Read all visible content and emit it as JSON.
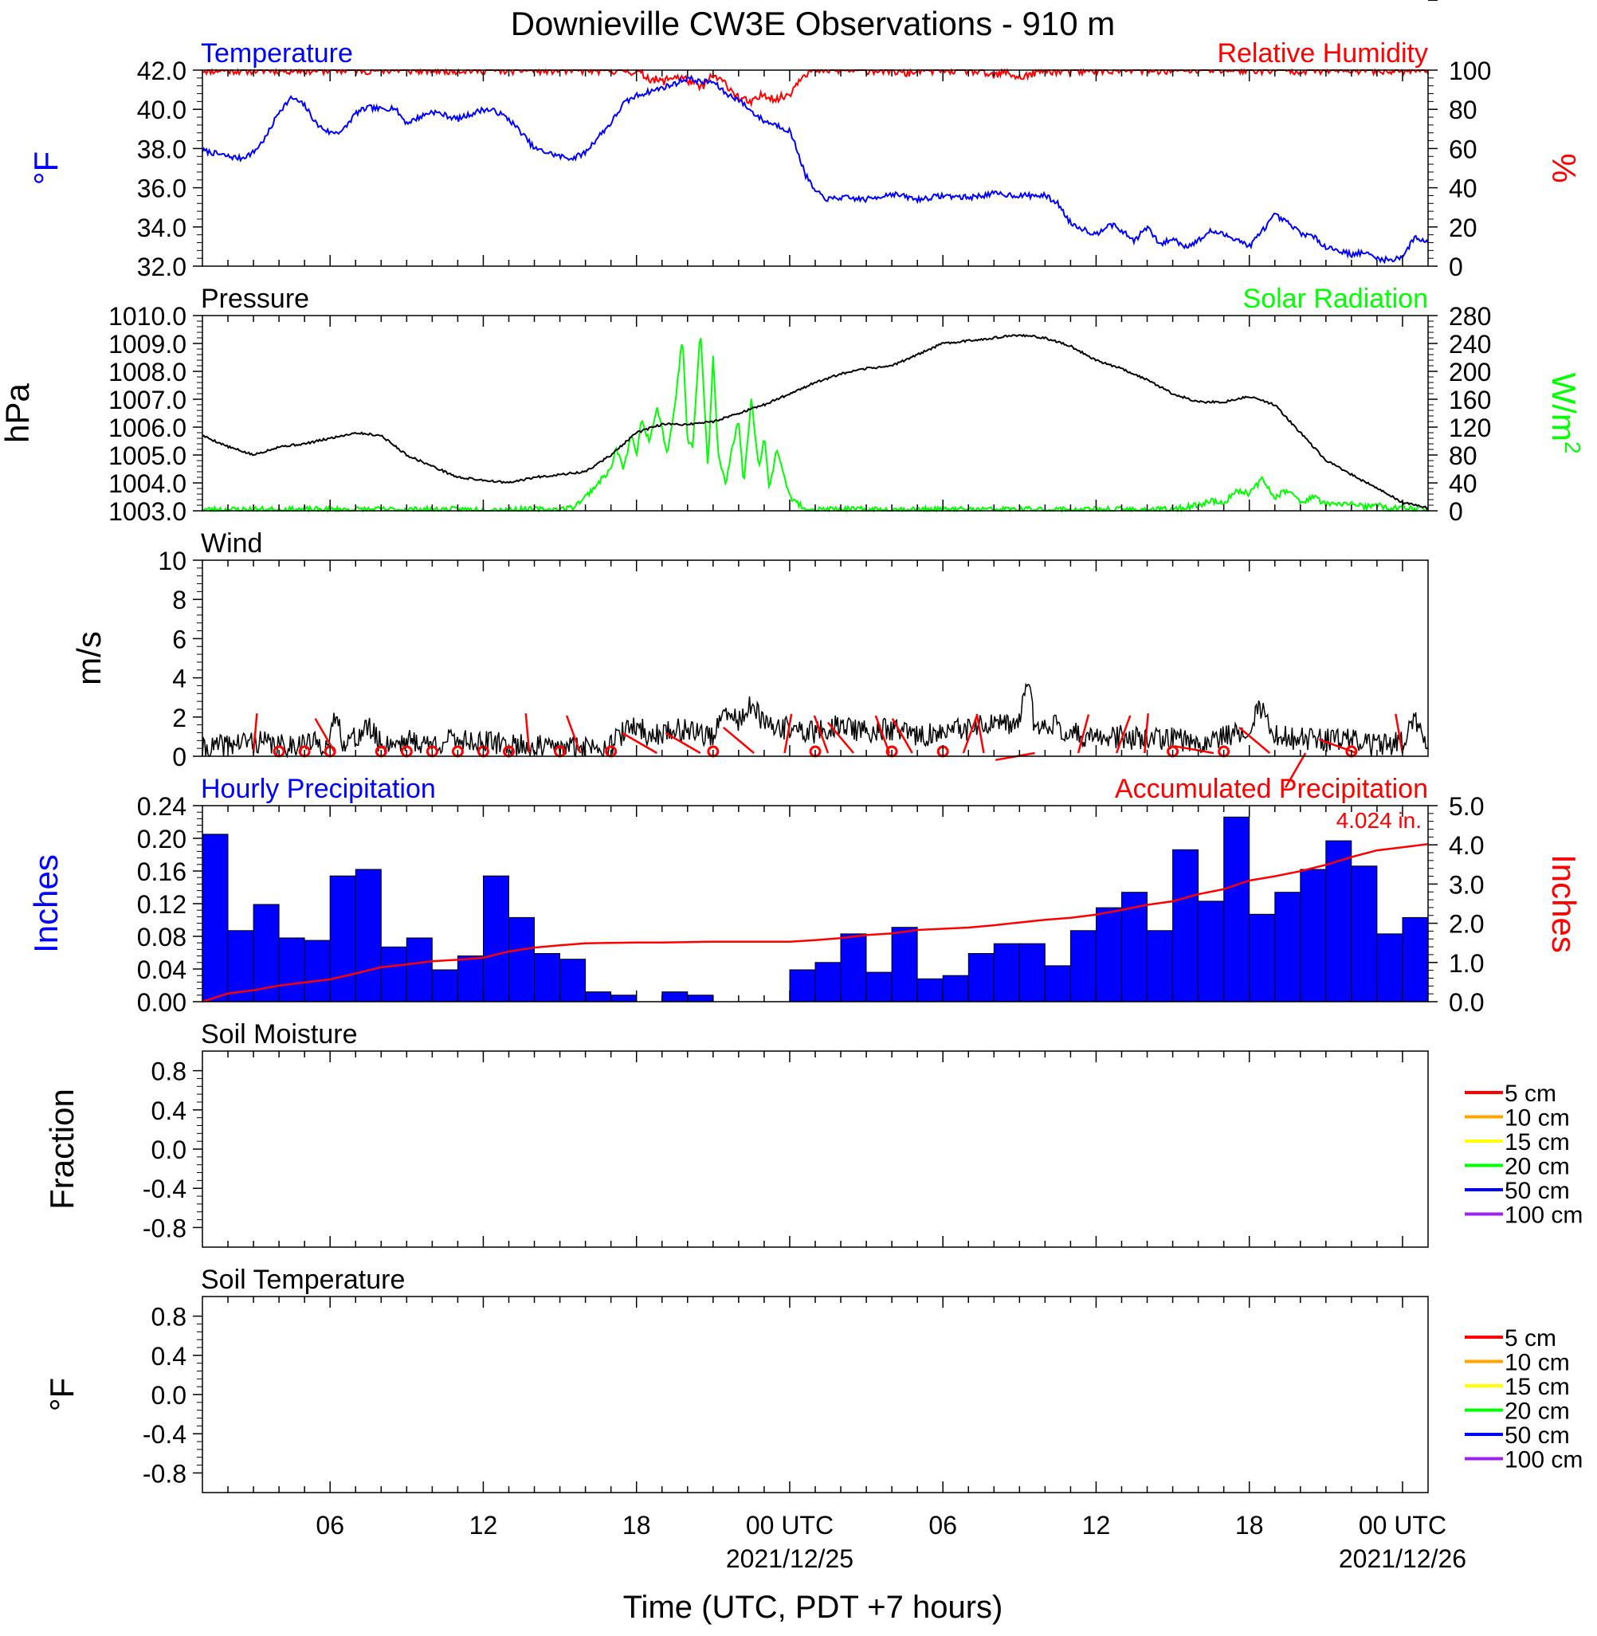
{
  "title": "Downieville CW3E Observations - 910 m",
  "x_axis": {
    "label": "Time (UTC, PDT +7 hours)",
    "tick_labels": [
      {
        "h": 6,
        "text": "06"
      },
      {
        "h": 12,
        "text": "12"
      },
      {
        "h": 18,
        "text": "18"
      },
      {
        "h": 24,
        "text": "00 UTC"
      },
      {
        "h": 30,
        "text": "06"
      },
      {
        "h": 36,
        "text": "12"
      },
      {
        "h": 42,
        "text": "18"
      },
      {
        "h": 48,
        "text": "00 UTC"
      }
    ],
    "date_labels": [
      {
        "h": 24,
        "text": "2021/12/25"
      },
      {
        "h": 48,
        "text": "2021/12/26"
      }
    ],
    "range_hours": [
      1,
      49
    ]
  },
  "chart_data": [
    {
      "type": "line",
      "panel": "temperature-humidity",
      "left_title": "Temperature",
      "right_title": "Relative Humidity",
      "ylabel": "°F",
      "ylabel_right": "%",
      "ylim": [
        32,
        42
      ],
      "ylim_right": [
        0,
        100
      ],
      "yticks": [
        "32.0",
        "34.0",
        "36.0",
        "38.0",
        "40.0",
        "42.0"
      ],
      "yticks_right": [
        "0",
        "20",
        "40",
        "60",
        "80",
        "100"
      ],
      "series": [
        {
          "color": "#0000ff",
          "axis": "left",
          "x": [
            1,
            2,
            2.5,
            3,
            3.5,
            4,
            4.5,
            5,
            5.5,
            6,
            6.5,
            7,
            7.5,
            8,
            8.5,
            9,
            9.5,
            10,
            11,
            12,
            12.5,
            13,
            13.5,
            14,
            14.5,
            15,
            15.5,
            16,
            16.5,
            17,
            17.5,
            18,
            18.5,
            19,
            19.5,
            20,
            20.5,
            21,
            21.5,
            22,
            22.5,
            23,
            23.5,
            24,
            24.3,
            24.6,
            25,
            25.5,
            26,
            27,
            28,
            29,
            30,
            31,
            32,
            33,
            34,
            34.5,
            35,
            35.5,
            36,
            36.5,
            37,
            37.5,
            38,
            38.5,
            39,
            39.5,
            40,
            40.5,
            41,
            41.5,
            42,
            42.5,
            43,
            43.5,
            44,
            44.5,
            45,
            45.5,
            46,
            46.5,
            47,
            47.5,
            48,
            48.5,
            49
          ],
          "y": [
            37.9,
            37.6,
            37.5,
            37.8,
            38.6,
            39.9,
            40.6,
            40.2,
            39.2,
            38.8,
            38.9,
            39.8,
            40.1,
            40.0,
            40.1,
            39.3,
            39.6,
            39.9,
            39.5,
            40.0,
            39.9,
            39.5,
            38.8,
            38.0,
            37.8,
            37.6,
            37.5,
            37.8,
            38.6,
            39.3,
            40.3,
            40.7,
            40.9,
            41.1,
            41.3,
            41.6,
            41.4,
            41.4,
            40.8,
            40.5,
            39.9,
            39.4,
            39.2,
            38.9,
            37.9,
            36.7,
            35.8,
            35.4,
            35.5,
            35.4,
            35.7,
            35.4,
            35.6,
            35.5,
            35.7,
            35.6,
            35.6,
            35.2,
            34.2,
            33.9,
            33.6,
            34.2,
            33.8,
            33.3,
            34.0,
            33.1,
            33.4,
            33.0,
            33.3,
            33.8,
            33.6,
            33.4,
            33.0,
            33.8,
            34.6,
            34.2,
            33.7,
            33.5,
            33.0,
            32.8,
            32.6,
            32.7,
            32.4,
            32.3,
            32.5,
            33.5,
            33.2
          ]
        },
        {
          "color": "#ff0000",
          "axis": "right",
          "x": [
            1,
            17.5,
            18,
            18.5,
            19,
            19.5,
            20,
            20.5,
            21,
            21.5,
            22,
            22.5,
            23,
            23.5,
            24,
            24.5,
            25,
            28,
            28.5,
            29,
            31,
            32,
            32.5,
            33,
            33.5,
            34,
            35,
            36,
            49
          ],
          "y": [
            100,
            100,
            99,
            96,
            94,
            97,
            95,
            91,
            97,
            93,
            86,
            83,
            88,
            85,
            88,
            98,
            100,
            100,
            98,
            100,
            100,
            97,
            99,
            96,
            98,
            100,
            99,
            100,
            100
          ]
        }
      ]
    },
    {
      "type": "line",
      "panel": "pressure-solar",
      "left_title": "Pressure",
      "right_title": "Solar Radiation",
      "ylabel": "hPa",
      "ylabel_right_base": "W/m",
      "ylabel_right_sup": "2",
      "ylim": [
        1003,
        1010
      ],
      "ylim_right": [
        0,
        280
      ],
      "yticks": [
        "1003.0",
        "1004.0",
        "1005.0",
        "1006.0",
        "1007.0",
        "1008.0",
        "1009.0",
        "1010.0"
      ],
      "yticks_right": [
        "0",
        "40",
        "80",
        "120",
        "160",
        "200",
        "240",
        "280"
      ],
      "series": [
        {
          "color": "#000000",
          "axis": "left",
          "x": [
            1,
            2,
            3,
            4,
            5,
            6,
            7,
            8,
            9,
            10,
            11,
            12,
            13,
            14,
            15,
            16,
            17,
            18,
            19,
            20,
            21,
            22,
            23,
            24,
            25,
            26,
            27,
            28,
            29,
            30,
            31,
            32,
            33,
            34,
            35,
            36,
            37,
            38,
            39,
            40,
            41,
            42,
            43,
            44,
            45,
            46,
            47,
            48,
            49
          ],
          "y": [
            1005.7,
            1005.3,
            1005.0,
            1005.3,
            1005.4,
            1005.6,
            1005.8,
            1005.7,
            1005.0,
            1004.6,
            1004.2,
            1004.1,
            1004.0,
            1004.2,
            1004.3,
            1004.4,
            1005.0,
            1005.8,
            1006.1,
            1006.1,
            1006.2,
            1006.5,
            1006.8,
            1007.2,
            1007.6,
            1007.9,
            1008.1,
            1008.2,
            1008.6,
            1009.0,
            1009.1,
            1009.2,
            1009.3,
            1009.2,
            1008.9,
            1008.4,
            1008.1,
            1007.7,
            1007.2,
            1006.9,
            1006.9,
            1007.1,
            1006.8,
            1005.8,
            1004.8,
            1004.3,
            1003.8,
            1003.3,
            1003.1
          ]
        },
        {
          "color": "#00ff00",
          "axis": "right",
          "x": [
            1,
            15,
            15.5,
            16,
            16.5,
            17,
            17.2,
            17.5,
            17.8,
            18,
            18.2,
            18.5,
            18.8,
            19,
            19.2,
            19.5,
            19.8,
            20,
            20.2,
            20.5,
            20.8,
            21,
            21.2,
            21.5,
            21.8,
            22,
            22.2,
            22.5,
            22.8,
            23,
            23.2,
            23.5,
            24,
            24.5,
            25,
            39,
            40,
            40.5,
            41,
            41.5,
            42,
            42.5,
            43,
            43.5,
            44,
            44.5,
            45,
            45.5,
            46,
            46.5,
            47,
            47.5,
            48,
            49
          ],
          "y": [
            2,
            2,
            5,
            20,
            40,
            60,
            90,
            60,
            110,
            80,
            130,
            100,
            150,
            120,
            80,
            150,
            250,
            100,
            90,
            260,
            60,
            220,
            80,
            40,
            100,
            130,
            40,
            160,
            60,
            110,
            30,
            90,
            20,
            5,
            2,
            2,
            8,
            15,
            10,
            30,
            25,
            45,
            20,
            30,
            12,
            20,
            10,
            8,
            12,
            5,
            8,
            3,
            5,
            2
          ]
        }
      ]
    },
    {
      "type": "line",
      "panel": "wind",
      "left_title": "Wind",
      "ylabel": "m/s",
      "ylim": [
        0,
        10
      ],
      "yticks": [
        "0",
        "2",
        "4",
        "6",
        "8",
        "10"
      ],
      "series": [
        {
          "color": "#000000",
          "axis": "left",
          "x": [
            1,
            2,
            3,
            4,
            5,
            6,
            6.2,
            6.5,
            7,
            7.5,
            8,
            9,
            10,
            11,
            12,
            13,
            14,
            15,
            16,
            17,
            17.5,
            18,
            18.5,
            19,
            20,
            21,
            21.5,
            22,
            22.5,
            23,
            24,
            25,
            26,
            27,
            28,
            29,
            30,
            31,
            32,
            32.5,
            33,
            33.3,
            33.6,
            34,
            35,
            36,
            37,
            38,
            39,
            40,
            41,
            42,
            42.5,
            43,
            44,
            45,
            46,
            47,
            48,
            48.5,
            49
          ],
          "y": [
            0.3,
            0.6,
            0.8,
            0.5,
            0.7,
            0.6,
            2.2,
            0.8,
            0.9,
            1.5,
            0.6,
            0.8,
            0.6,
            0.9,
            0.7,
            0.6,
            0.5,
            0.4,
            0.5,
            0.6,
            1.2,
            1.6,
            1.0,
            1.2,
            1.4,
            1.0,
            2.2,
            1.8,
            2.6,
            1.6,
            1.4,
            1.2,
            1.6,
            1.2,
            1.4,
            1.0,
            1.2,
            1.4,
            1.6,
            1.5,
            1.8,
            4.0,
            1.5,
            1.8,
            1.2,
            0.9,
            1.0,
            0.8,
            0.9,
            0.7,
            1.0,
            1.5,
            2.6,
            1.0,
            0.9,
            0.8,
            0.9,
            0.5,
            0.8,
            1.8,
            0.4
          ]
        }
      ],
      "barbs": [
        {
          "h": 3.0,
          "angle": 5
        },
        {
          "h": 6.2,
          "angle": 330
        },
        {
          "h": 13.8,
          "angle": 355
        },
        {
          "h": 15.8,
          "angle": 340
        },
        {
          "h": 18.8,
          "angle": 300
        },
        {
          "h": 20.5,
          "angle": 300
        },
        {
          "h": 22.6,
          "angle": 310
        },
        {
          "h": 23.8,
          "angle": 10
        },
        {
          "h": 25.5,
          "angle": 340
        },
        {
          "h": 26.5,
          "angle": 320
        },
        {
          "h": 27.9,
          "angle": 340
        },
        {
          "h": 28.8,
          "angle": 330
        },
        {
          "h": 30.8,
          "angle": 20
        },
        {
          "h": 31.6,
          "angle": 350
        },
        {
          "h": 33.6,
          "angle": 260
        },
        {
          "h": 35.3,
          "angle": 15
        },
        {
          "h": 36.8,
          "angle": 20
        },
        {
          "h": 37.9,
          "angle": 5
        },
        {
          "h": 40.6,
          "angle": 280
        },
        {
          "h": 42.8,
          "angle": 310
        },
        {
          "h": 44.2,
          "angle": 210
        },
        {
          "h": 46.2,
          "angle": 290
        },
        {
          "h": 48.0,
          "angle": 350
        }
      ],
      "calms": [
        4,
        5,
        6,
        8,
        9,
        10,
        11,
        12,
        13,
        15,
        17,
        21,
        25,
        28,
        30,
        39,
        41,
        46
      ]
    },
    {
      "type": "bar",
      "panel": "precipitation",
      "left_title": "Hourly Precipitation",
      "right_title": "Accumulated Precipitation",
      "ylabel": "Inches",
      "ylabel_right": "Inches",
      "ylim": [
        0,
        0.24
      ],
      "ylim_right": [
        0,
        5
      ],
      "yticks": [
        "0.00",
        "0.04",
        "0.08",
        "0.12",
        "0.16",
        "0.20",
        "0.24"
      ],
      "yticks_right": [
        "0.0",
        "1.0",
        "2.0",
        "3.0",
        "4.0",
        "5.0"
      ],
      "bar_color": "#0000ff",
      "bar_hours": [
        1,
        2,
        3,
        4,
        5,
        6,
        7,
        8,
        9,
        10,
        11,
        12,
        13,
        14,
        15,
        16,
        17,
        18,
        19,
        20,
        21,
        22,
        23,
        24,
        25,
        26,
        27,
        28,
        29,
        30,
        31,
        32,
        33,
        34,
        35,
        36,
        37,
        38,
        39,
        40,
        41,
        42,
        43,
        44,
        45,
        46,
        47,
        48
      ],
      "values": [
        0.205,
        0.087,
        0.119,
        0.078,
        0.075,
        0.154,
        0.162,
        0.067,
        0.078,
        0.039,
        0.056,
        0.154,
        0.103,
        0.059,
        0.052,
        0.012,
        0.008,
        0.0,
        0.012,
        0.008,
        0.0,
        0.0,
        0.0,
        0.039,
        0.048,
        0.083,
        0.036,
        0.091,
        0.028,
        0.032,
        0.059,
        0.071,
        0.071,
        0.044,
        0.087,
        0.115,
        0.134,
        0.087,
        0.186,
        0.123,
        0.226,
        0.107,
        0.134,
        0.162,
        0.197,
        0.166,
        0.083,
        0.103
      ],
      "accumulated_label": "4.024 in.",
      "accumulated": {
        "color": "#ff0000",
        "x": [
          1,
          2,
          3,
          4,
          5,
          6,
          7,
          8,
          9,
          10,
          11,
          12,
          13,
          14,
          15,
          16,
          17,
          18,
          19,
          20,
          21,
          22,
          23,
          24,
          25,
          26,
          27,
          28,
          29,
          30,
          31,
          32,
          33,
          34,
          35,
          36,
          37,
          38,
          39,
          40,
          41,
          42,
          43,
          44,
          45,
          46,
          47,
          48,
          49
        ],
        "y": [
          0.0,
          0.21,
          0.29,
          0.41,
          0.49,
          0.57,
          0.72,
          0.88,
          0.95,
          1.03,
          1.07,
          1.12,
          1.28,
          1.38,
          1.44,
          1.49,
          1.5,
          1.51,
          1.51,
          1.52,
          1.53,
          1.53,
          1.53,
          1.53,
          1.57,
          1.62,
          1.7,
          1.74,
          1.83,
          1.86,
          1.89,
          1.95,
          2.02,
          2.09,
          2.14,
          2.22,
          2.34,
          2.47,
          2.56,
          2.74,
          2.87,
          3.09,
          3.2,
          3.33,
          3.49,
          3.69,
          3.86,
          3.94,
          4.02
        ]
      }
    },
    {
      "type": "line",
      "panel": "soil-moisture",
      "left_title": "Soil Moisture",
      "ylabel": "Fraction",
      "ylim": [
        -1,
        1
      ],
      "yticks": [
        "-0.8",
        "-0.4",
        "0.0",
        "0.4",
        "0.8"
      ],
      "legend": [
        {
          "label": "5 cm",
          "color": "#ff0000"
        },
        {
          "label": "10 cm",
          "color": "#ffa500"
        },
        {
          "label": "15 cm",
          "color": "#ffff00"
        },
        {
          "label": "20 cm",
          "color": "#00ff00"
        },
        {
          "label": "50 cm",
          "color": "#0000ff"
        },
        {
          "label": "100 cm",
          "color": "#a020f0"
        }
      ],
      "series": []
    },
    {
      "type": "line",
      "panel": "soil-temperature",
      "left_title": "Soil Temperature",
      "ylabel": "°F",
      "ylim": [
        -1,
        1
      ],
      "yticks": [
        "-0.8",
        "-0.4",
        "0.0",
        "0.4",
        "0.8"
      ],
      "legend": [
        {
          "label": "5 cm",
          "color": "#ff0000"
        },
        {
          "label": "10 cm",
          "color": "#ffa500"
        },
        {
          "label": "15 cm",
          "color": "#ffff00"
        },
        {
          "label": "20 cm",
          "color": "#00ff00"
        },
        {
          "label": "50 cm",
          "color": "#0000ff"
        },
        {
          "label": "100 cm",
          "color": "#a020f0"
        }
      ],
      "series": []
    }
  ]
}
